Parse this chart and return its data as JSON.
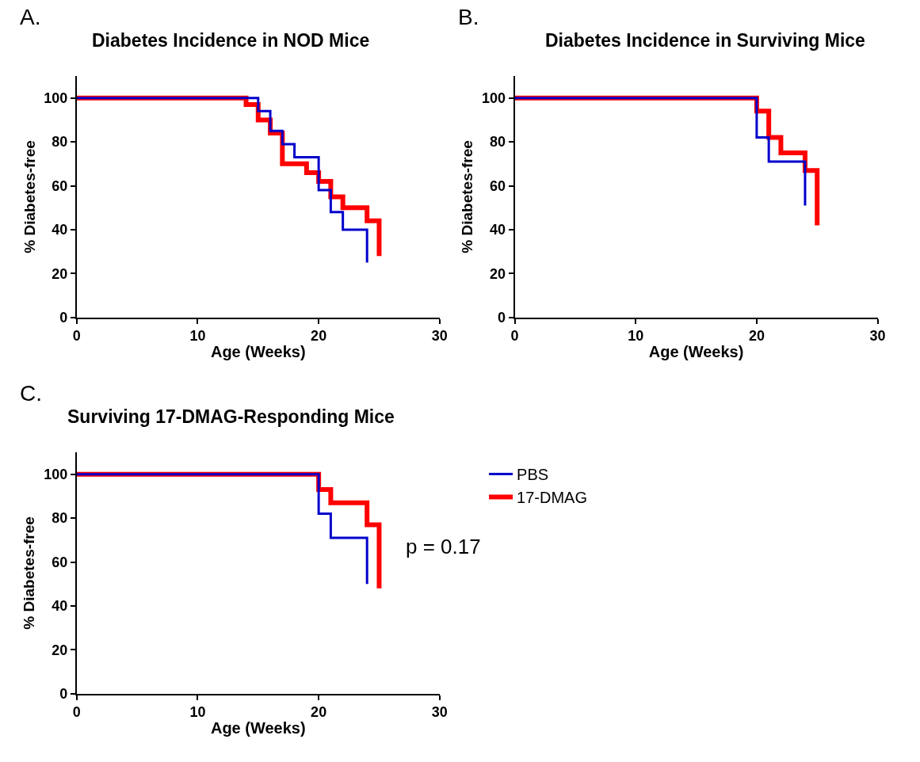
{
  "chart_data": [
    {
      "type": "step",
      "title": "Diabetes Incidence in NOD Mice",
      "xlabel": "Age (Weeks)",
      "ylabel": "% Diabetes-free",
      "annotations": [
        "A."
      ],
      "xlim": [
        0,
        30
      ],
      "xticks": [
        0,
        10,
        20,
        30
      ],
      "ylim": [
        0,
        110
      ],
      "yticks": [
        0,
        20,
        40,
        60,
        80,
        100
      ],
      "series": [
        {
          "color": "#ff0000",
          "x": [
            0,
            14,
            15,
            16,
            17,
            19,
            20,
            21,
            22,
            24,
            25
          ],
          "values": [
            100,
            97,
            90,
            84,
            70,
            66,
            62,
            55,
            50,
            44,
            28
          ]
        },
        {
          "color": "#0000cc",
          "x": [
            0,
            15,
            16,
            17,
            18,
            20,
            21,
            22,
            24
          ],
          "values": [
            100,
            94,
            85,
            79,
            73,
            58,
            48,
            40,
            25
          ]
        }
      ]
    },
    {
      "type": "step",
      "title": "Diabetes Incidence in Surviving Mice",
      "xlabel": "Age (Weeks)",
      "ylabel": "% Diabetes-free",
      "annotations": [
        "B."
      ],
      "xlim": [
        0,
        30
      ],
      "xticks": [
        0,
        10,
        20,
        30
      ],
      "ylim": [
        0,
        110
      ],
      "yticks": [
        0,
        20,
        40,
        60,
        80,
        100
      ],
      "series": [
        {
          "color": "#ff0000",
          "x": [
            0,
            20,
            21,
            22,
            24,
            25
          ],
          "values": [
            100,
            94,
            82,
            75,
            67,
            42
          ]
        },
        {
          "color": "#0000cc",
          "x": [
            0,
            20,
            21,
            24
          ],
          "values": [
            100,
            82,
            71,
            51
          ]
        }
      ]
    },
    {
      "type": "step",
      "title": "Surviving 17-DMAG-Responding Mice",
      "xlabel": "Age (Weeks)",
      "ylabel": "% Diabetes-free",
      "annotations": [
        "C.",
        "p = 0.17"
      ],
      "xlim": [
        0,
        30
      ],
      "xticks": [
        0,
        10,
        20,
        30
      ],
      "ylim": [
        0,
        110
      ],
      "yticks": [
        0,
        20,
        40,
        60,
        80,
        100
      ],
      "legend": "right",
      "series": [
        {
          "name": "17-DMAG",
          "color": "#ff0000",
          "x": [
            0,
            20,
            21,
            24,
            25
          ],
          "values": [
            100,
            93,
            87,
            77,
            48
          ]
        },
        {
          "name": "PBS",
          "color": "#0000cc",
          "x": [
            0,
            20,
            21,
            24
          ],
          "values": [
            100,
            82,
            71,
            50
          ]
        }
      ]
    }
  ]
}
